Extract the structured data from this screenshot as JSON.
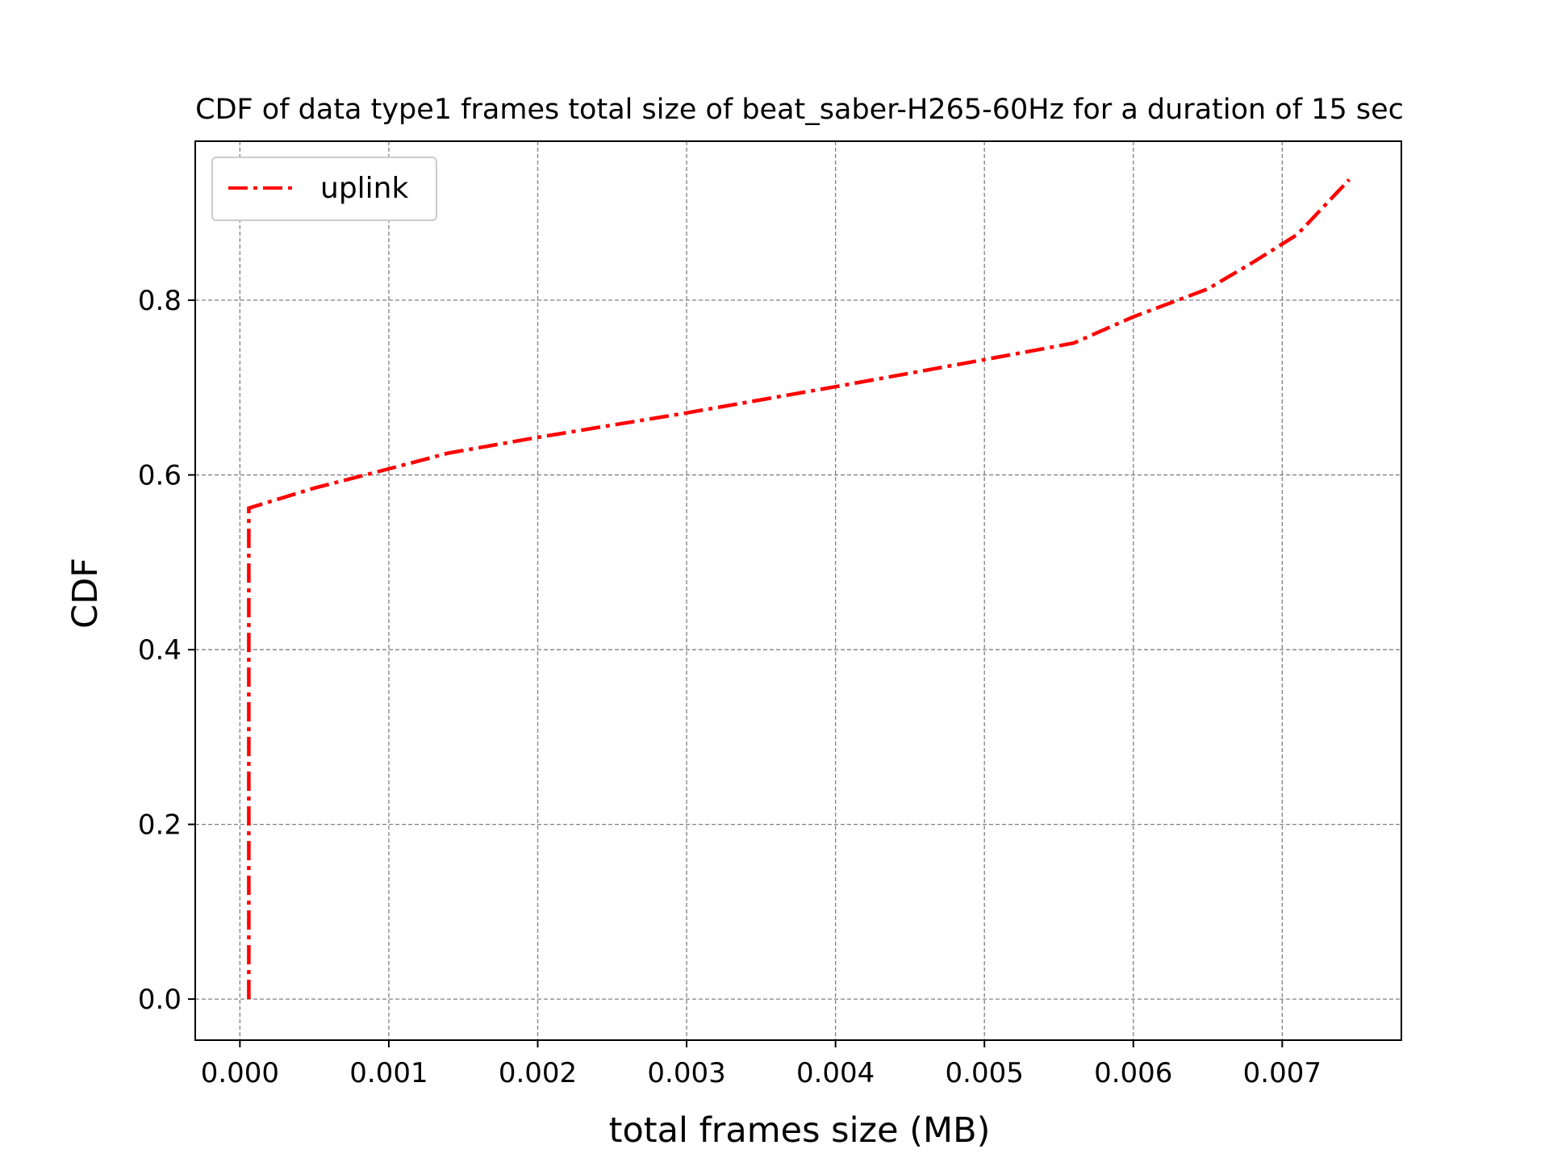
{
  "chart_data": {
    "type": "line",
    "title": "CDF of data type1 frames total size of beat_saber-H265-60Hz for a duration of 15 sec",
    "xlabel": "total frames size (MB)",
    "ylabel": "CDF",
    "xlim": [
      -0.0003,
      0.0078
    ],
    "ylim": [
      -0.047,
      0.982
    ],
    "xticks": [
      0.0,
      0.001,
      0.002,
      0.003,
      0.004,
      0.005,
      0.006,
      0.007
    ],
    "xtick_labels": [
      "0.000",
      "0.001",
      "0.002",
      "0.003",
      "0.004",
      "0.005",
      "0.006",
      "0.007"
    ],
    "yticks": [
      0.0,
      0.2,
      0.4,
      0.6,
      0.8
    ],
    "ytick_labels": [
      "0.0",
      "0.2",
      "0.4",
      "0.6",
      "0.8"
    ],
    "grid": true,
    "legend": "top-left",
    "series": [
      {
        "name": "uplink",
        "color": "#ff0000",
        "linestyle": "dashdot",
        "x": [
          6e-05,
          6e-05,
          0.0005,
          0.001,
          0.0014,
          0.002,
          0.003,
          0.004,
          0.005,
          0.0056,
          0.006,
          0.0065,
          0.0068,
          0.0071,
          0.00745
        ],
        "y": [
          0.0,
          0.562,
          0.585,
          0.607,
          0.625,
          0.643,
          0.671,
          0.701,
          0.732,
          0.751,
          0.781,
          0.813,
          0.843,
          0.875,
          0.938
        ]
      }
    ]
  }
}
